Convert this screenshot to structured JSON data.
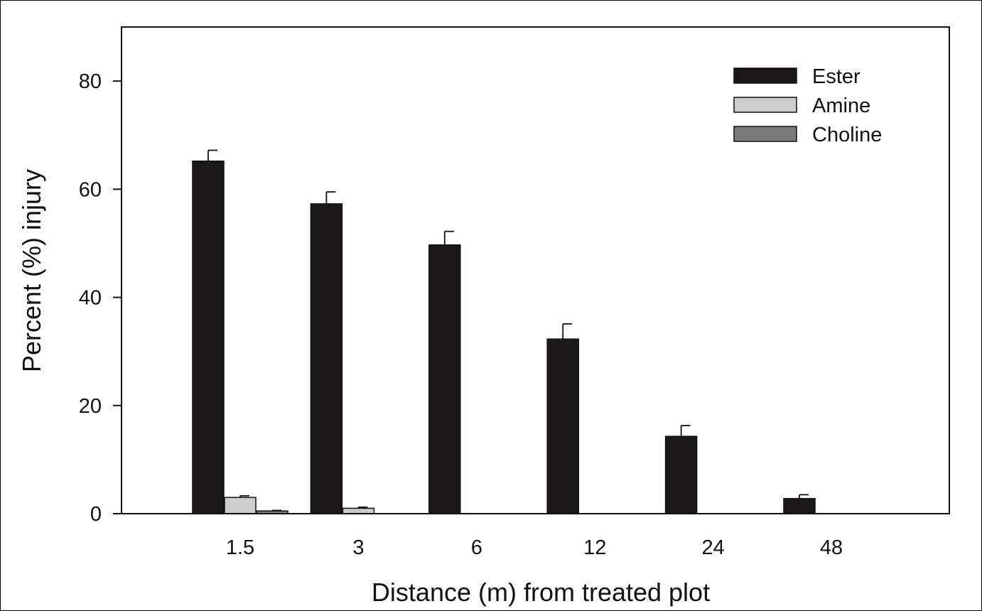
{
  "chart_data": {
    "type": "bar",
    "title": "",
    "xlabel": "Distance (m) from treated plot",
    "ylabel": "Percent (%) injury",
    "categories": [
      "1.5",
      "3",
      "6",
      "12",
      "24",
      "48"
    ],
    "yticks": [
      "0",
      "20",
      "40",
      "60",
      "80"
    ],
    "ylim": [
      0,
      90
    ],
    "grid": false,
    "legend_position": "top-right",
    "series": [
      {
        "name": "Ester",
        "color": "#1a1718",
        "values": [
          65.2,
          57.3,
          49.7,
          32.3,
          14.3,
          2.8
        ],
        "errors": [
          2.0,
          2.2,
          2.5,
          2.8,
          2.0,
          0.7
        ]
      },
      {
        "name": "Amine",
        "color": "#cccccc",
        "values": [
          3.0,
          1.0,
          0,
          0,
          0,
          0
        ],
        "errors": [
          0.3,
          0.2,
          0,
          0,
          0,
          0
        ]
      },
      {
        "name": "Choline",
        "color": "#7a7a7a",
        "values": [
          0.5,
          0,
          0,
          0,
          0,
          0
        ],
        "errors": [
          0.1,
          0,
          0,
          0,
          0,
          0
        ]
      }
    ]
  }
}
